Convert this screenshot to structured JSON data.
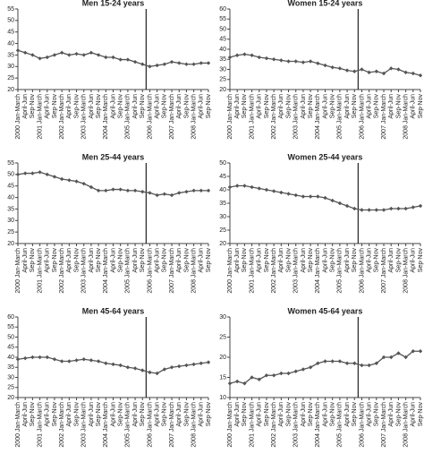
{
  "chart_data": [
    {
      "type": "line",
      "title": "Men 15-24 years",
      "categories": [
        "2000 Jan-March",
        "April-Jun",
        "Sep-Nov",
        "2001 Jan-March",
        "April-Jun",
        "Sep-Nov",
        "2002 Jan-March",
        "April-Jun",
        "Sep-Nov",
        "2003 Jan-March",
        "April-Jun",
        "Sep-Nov",
        "2004 Jan-March",
        "April-Jun",
        "Sep-Nov",
        "2005 Jan-March",
        "April-Jun",
        "Sep-Nov",
        "2006 Jan-March",
        "April-Jun",
        "Sep-Nov",
        "2007 Jan-March",
        "April-Jun",
        "Sep-Nov",
        "2008 Jan-March",
        "April-Jun",
        "Sep-Nov"
      ],
      "values": [
        37,
        36,
        35,
        33.5,
        34,
        35,
        36,
        35,
        35.5,
        35,
        36,
        35,
        34,
        34,
        33,
        33,
        32,
        31,
        30,
        30.5,
        31,
        32,
        31.5,
        31,
        31,
        31.5,
        31.5
      ],
      "color": "#555555",
      "ylim": [
        20,
        55
      ],
      "yticks": [
        20,
        25,
        30,
        35,
        40,
        45,
        50,
        55
      ]
    },
    {
      "type": "line",
      "title": "Women 15-24 years",
      "categories": [
        "2000 Jan-March",
        "April-Jun",
        "Sep-Nov",
        "2001 Jan-March",
        "April-Jun",
        "Sep-Nov",
        "2002 Jan-March",
        "April-Jun",
        "Sep-Nov",
        "2003 Jan-March",
        "April-Jun",
        "Sep-Nov",
        "2004 Jan-March",
        "April-Jun",
        "Sep-Nov",
        "2005 Jan-March",
        "April-Jun",
        "Sep-Nov",
        "2006 Jan-March",
        "April-Jun",
        "Sep-Nov",
        "2007 Jan-March",
        "April-Jun",
        "Sep-Nov",
        "2008 Jan-March",
        "April-Jun",
        "Sep-Nov"
      ],
      "values": [
        36,
        37,
        37.5,
        37,
        36,
        35.5,
        35,
        34.5,
        34,
        34,
        33.5,
        34,
        33,
        32,
        31,
        30.5,
        29.5,
        29,
        30,
        28.5,
        29,
        28,
        30.5,
        30,
        28.5,
        28,
        27
      ],
      "color": "#555555",
      "ylim": [
        20,
        60
      ],
      "yticks": [
        20,
        25,
        30,
        35,
        40,
        45,
        50,
        55,
        60
      ]
    },
    {
      "type": "line",
      "title": "Men 25-44 years",
      "categories": [
        "2000 Jan-March",
        "April-Jun",
        "Sep-Nov",
        "2001 Jan-March",
        "April-Jun",
        "Sep-Nov",
        "2002 Jan-March",
        "April-Jun",
        "Sep-Nov",
        "2003 Jan-March",
        "April-Jun",
        "Sep-Nov",
        "2004 Jan-March",
        "April-Jun",
        "Sep-Nov",
        "2005 Jan-March",
        "April-Jun",
        "Sep-Nov",
        "2006 Jan-March",
        "April-Jun",
        "Sep-Nov",
        "2007 Jan-March",
        "April-Jun",
        "Sep-Nov",
        "2008 Jan-March",
        "April-Jun",
        "Sep-Nov"
      ],
      "values": [
        50,
        50.5,
        50.5,
        51,
        50,
        49,
        48,
        47.5,
        47,
        46,
        44.5,
        43,
        43,
        43.5,
        43.5,
        43,
        43,
        42.5,
        42,
        41,
        41.5,
        41,
        42,
        42.5,
        43,
        43,
        43
      ],
      "color": "#555555",
      "ylim": [
        20,
        55
      ],
      "yticks": [
        20,
        25,
        30,
        35,
        40,
        45,
        50,
        55
      ]
    },
    {
      "type": "line",
      "title": "Women 25-44 years",
      "categories": [
        "2000 Jan-March",
        "April-Jun",
        "Sep-Nov",
        "2001 Jan-March",
        "April-Jun",
        "Sep-Nov",
        "2002 Jan-March",
        "April-Jun",
        "Sep-Nov",
        "2003 Jan-March",
        "April-Jun",
        "Sep-Nov",
        "2004 Jan-March",
        "April-Jun",
        "Sep-Nov",
        "2005 Jan-March",
        "April-Jun",
        "Sep-Nov",
        "2006 Jan-March",
        "April-Jun",
        "Sep-Nov",
        "2007 Jan-March",
        "April-Jun",
        "Sep-Nov",
        "2008 Jan-March",
        "April-Jun",
        "Sep-Nov"
      ],
      "values": [
        41,
        41.5,
        41.5,
        41,
        40.5,
        40,
        39.5,
        39,
        38.5,
        38,
        37.5,
        37.5,
        37.5,
        37,
        36,
        35,
        34,
        33,
        32.5,
        32.5,
        32.5,
        32.5,
        33,
        33,
        33,
        33.5,
        34
      ],
      "color": "#555555",
      "ylim": [
        20,
        50
      ],
      "yticks": [
        20,
        25,
        30,
        35,
        40,
        45,
        50
      ]
    },
    {
      "type": "line",
      "title": "Men 45-64 years",
      "categories": [
        "2000 Jan-March",
        "April-Jun",
        "Sep-Nov",
        "2001 Jan-March",
        "April-Jun",
        "Sep-Nov",
        "2002 Jan-March",
        "April-Jun",
        "Sep-Nov",
        "2003 Jan-March",
        "April-Jun",
        "Sep-Nov",
        "2004 Jan-March",
        "April-Jun",
        "Sep-Nov",
        "2005 Jan-March",
        "April-Jun",
        "Sep-Nov",
        "2006 Jan-March",
        "April-Jun",
        "Sep-Nov",
        "2007 Jan-March",
        "April-Jun",
        "Sep-Nov",
        "2008 Jan-March",
        "April-Jun",
        "Sep-Nov"
      ],
      "values": [
        39,
        39.5,
        40,
        40,
        40,
        39,
        38,
        38,
        38.5,
        39,
        38.5,
        38,
        37,
        36.5,
        36,
        35,
        34.5,
        33.5,
        32.5,
        32,
        34,
        35,
        35.5,
        36,
        36.5,
        37,
        37.5
      ],
      "color": "#555555",
      "ylim": [
        20,
        60
      ],
      "yticks": [
        20,
        25,
        30,
        35,
        40,
        45,
        50,
        55,
        60
      ]
    },
    {
      "type": "line",
      "title": "Women 45-64 years",
      "categories": [
        "2000 Jan-March",
        "April-Jun",
        "Sep-Nov",
        "2001 Jan-March",
        "April-Jun",
        "Sep-Nov",
        "2002 Jan-March",
        "April-Jun",
        "Sep-Nov",
        "2003 Jan-March",
        "April-Jun",
        "Sep-Nov",
        "2004 Jan-March",
        "April-Jun",
        "Sep-Nov",
        "2005 Jan-March",
        "April-Jun",
        "Sep-Nov",
        "2006 Jan-March",
        "April-Jun",
        "Sep-Nov",
        "2007 Jan-March",
        "April-Jun",
        "Sep-Nov",
        "2008 Jan-March",
        "April-Jun",
        "Sep-Nov"
      ],
      "values": [
        13.5,
        14,
        13.5,
        15,
        14.5,
        15.5,
        15.5,
        16,
        16,
        16.5,
        17,
        17.5,
        18.5,
        19,
        19,
        19,
        18.5,
        18.5,
        18,
        18,
        18.5,
        20,
        20,
        21,
        20,
        21.5,
        21.5
      ],
      "color": "#555555",
      "ylim": [
        10,
        30
      ],
      "yticks": [
        10,
        15,
        20,
        25,
        30
      ]
    }
  ]
}
